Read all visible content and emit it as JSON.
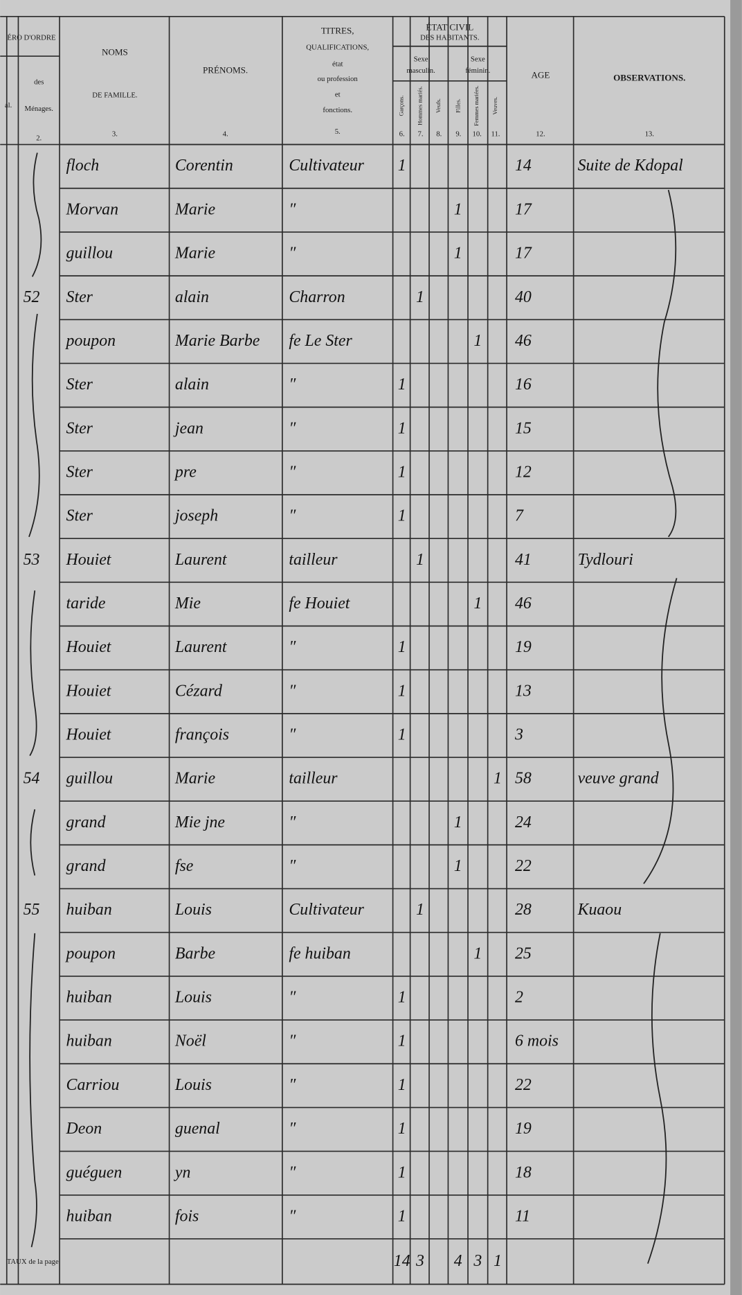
{
  "header": {
    "numero_ordre": "ÉRO D'ORDRE",
    "col1": "al.",
    "col2": [
      "des",
      "Ménages.",
      "2."
    ],
    "col3": [
      "NOMS",
      "DE FAMILLE.",
      "3."
    ],
    "col4": [
      "PRÉNOMS.",
      "4."
    ],
    "col5": [
      "TITRES,",
      "QUALIFICATIONS,",
      "état",
      "ou profession",
      "et",
      "fonctions.",
      "5."
    ],
    "etat_civil": [
      "ÉTAT CIVIL",
      "DES HABITANTS."
    ],
    "sexe_masculin": [
      "Sexe",
      "masculin."
    ],
    "sexe_feminin": [
      "Sexe",
      "féminin."
    ],
    "sub": [
      "Garçons.",
      "Hommes mariés.",
      "Veufs.",
      "Filles.",
      "Femmes mariées.",
      "Veuves."
    ],
    "sub_numbers": [
      "6.",
      "7.",
      "8.",
      "9.",
      "10.",
      "11."
    ],
    "age": [
      "AGE",
      "12."
    ],
    "observations": [
      "OBSERVATIONS.",
      "13."
    ]
  },
  "rows": [
    {
      "nom": "floch",
      "prenom": "Corentin",
      "titre": "Cultivateur",
      "garcons": "1",
      "age": "14",
      "obs": "Suite de Kdopal"
    },
    {
      "nom": "Morvan",
      "prenom": "Marie",
      "titre": "″",
      "filles": "1",
      "age": "17"
    },
    {
      "nom": "guillou",
      "prenom": "Marie",
      "titre": "″",
      "filles": "1",
      "age": "17"
    },
    {
      "menage": "52",
      "nom": "Ster",
      "prenom": "alain",
      "titre": "Charron",
      "hommes_maries": "1",
      "age": "40"
    },
    {
      "nom": "poupon",
      "prenom": "Marie Barbe",
      "titre": "fe Le Ster",
      "femmes_mariees": "1",
      "age": "46"
    },
    {
      "nom": "Ster",
      "prenom": "alain",
      "titre": "″",
      "garcons": "1",
      "age": "16"
    },
    {
      "nom": "Ster",
      "prenom": "jean",
      "titre": "″",
      "garcons": "1",
      "age": "15"
    },
    {
      "nom": "Ster",
      "prenom": "pre",
      "titre": "″",
      "garcons": "1",
      "age": "12"
    },
    {
      "nom": "Ster",
      "prenom": "joseph",
      "titre": "″",
      "garcons": "1",
      "age": "7"
    },
    {
      "menage": "53",
      "nom": "Houiet",
      "prenom": "Laurent",
      "titre": "tailleur",
      "hommes_maries": "1",
      "age": "41",
      "obs": "Tydlouri"
    },
    {
      "nom": "taride",
      "prenom": "Mie",
      "titre": "fe Houiet",
      "femmes_mariees": "1",
      "age": "46"
    },
    {
      "nom": "Houiet",
      "prenom": "Laurent",
      "titre": "″",
      "garcons": "1",
      "age": "19"
    },
    {
      "nom": "Houiet",
      "prenom": "Cézard",
      "titre": "″",
      "garcons": "1",
      "age": "13"
    },
    {
      "nom": "Houiet",
      "prenom": "françois",
      "titre": "″",
      "garcons": "1",
      "age": "3"
    },
    {
      "menage": "54",
      "nom": "guillou",
      "prenom": "Marie",
      "titre": "tailleur",
      "veuves": "1",
      "age": "58",
      "obs": "veuve grand"
    },
    {
      "nom": "grand",
      "prenom": "Mie jne",
      "titre": "″",
      "filles": "1",
      "age": "24"
    },
    {
      "nom": "grand",
      "prenom": "fse",
      "titre": "″",
      "filles": "1",
      "age": "22"
    },
    {
      "menage": "55",
      "nom": "huiban",
      "prenom": "Louis",
      "titre": "Cultivateur",
      "hommes_maries": "1",
      "age": "28",
      "obs": "Kuaou"
    },
    {
      "nom": "poupon",
      "prenom": "Barbe",
      "titre": "fe huiban",
      "femmes_mariees": "1",
      "age": "25"
    },
    {
      "nom": "huiban",
      "prenom": "Louis",
      "titre": "″",
      "garcons": "1",
      "age": "2"
    },
    {
      "nom": "huiban",
      "prenom": "Noël",
      "titre": "″",
      "garcons": "1",
      "age": "6 mois"
    },
    {
      "nom": "Carriou",
      "prenom": "Louis",
      "titre": "″",
      "garcons": "1",
      "age": "22"
    },
    {
      "nom": "Deon",
      "prenom": "guenal",
      "titre": "″",
      "garcons": "1",
      "age": "19"
    },
    {
      "nom": "guéguen",
      "prenom": "yn",
      "titre": "″",
      "garcons": "1",
      "age": "18"
    },
    {
      "nom": "huiban",
      "prenom": "fois",
      "titre": "″",
      "garcons": "1",
      "age": "11"
    }
  ],
  "totals": {
    "label": "TAUX de la page",
    "garcons": "14",
    "hommes_maries": "3",
    "filles": "4",
    "femmes_mariees": "3",
    "veuves": "1"
  }
}
